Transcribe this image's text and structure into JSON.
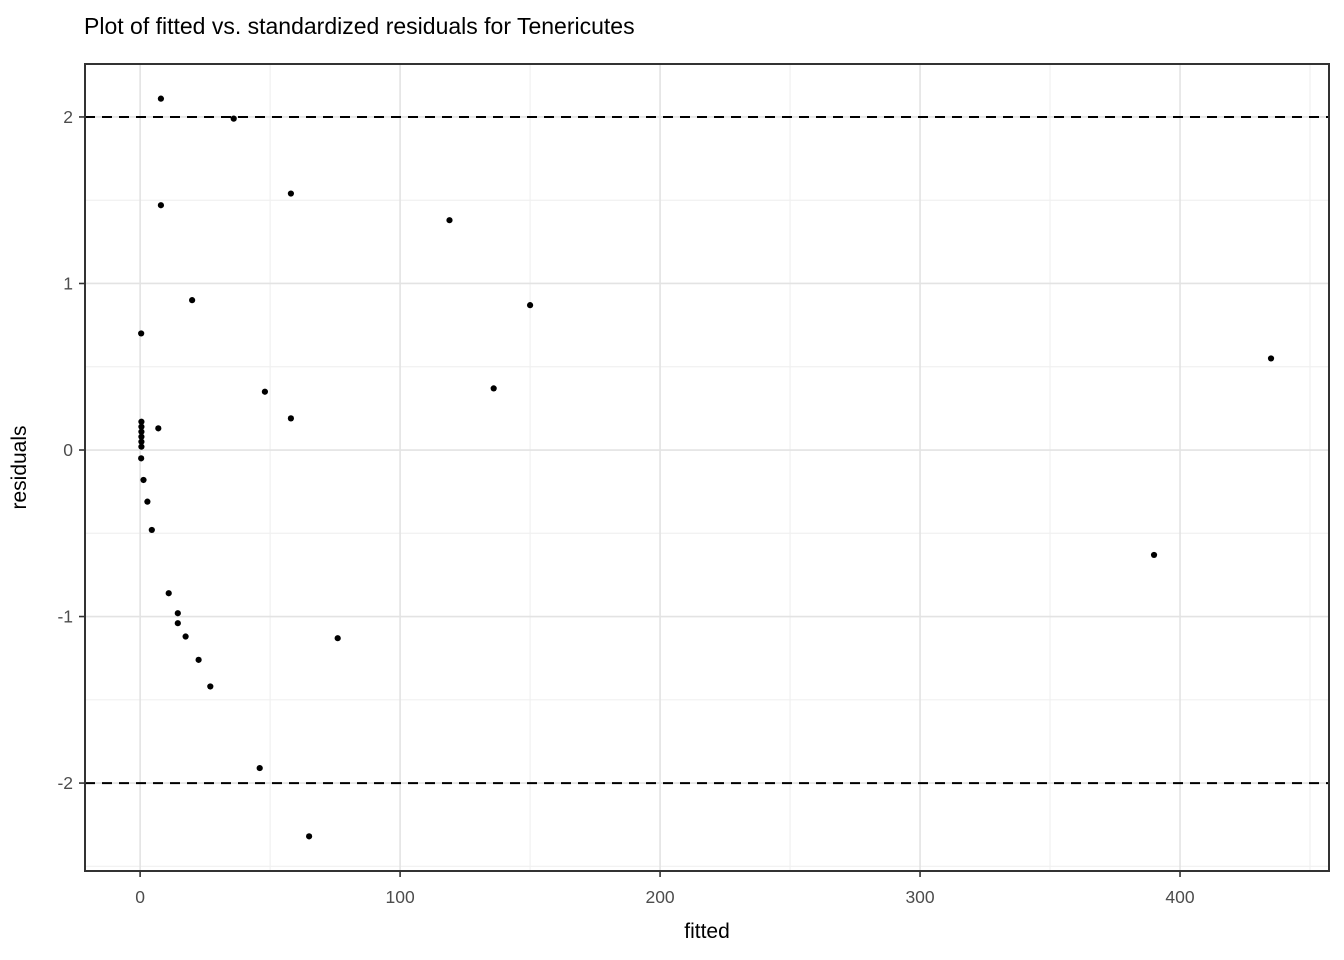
{
  "title": "Plot of fitted vs. standardized residuals for Tenericutes",
  "colors": {
    "background": "#ffffff",
    "panel_background": "#ffffff",
    "panel_border": "#333333",
    "grid_major": "#e3e3e3",
    "grid_minor": "#f0f0f0",
    "point": "#000000",
    "threshold_line": "#000000",
    "tick_mark": "#333333",
    "tick_label": "#4d4d4d",
    "title_text": "#000000"
  },
  "chart_data": {
    "type": "scatter",
    "title": "Plot of fitted vs. standardized residuals for Tenericutes",
    "xlabel": "fitted",
    "ylabel": "residuals",
    "xlim": [
      -21.2,
      457.3
    ],
    "ylim": [
      -2.528,
      2.318
    ],
    "x_ticks": [
      0,
      100,
      200,
      300,
      400
    ],
    "x_minor_ticks": [
      50,
      150,
      250,
      350,
      450
    ],
    "y_ticks": [
      -2,
      -1,
      0,
      1,
      2
    ],
    "y_minor_ticks": [
      -2.5,
      -1.5,
      -0.5,
      0.5,
      1.5
    ],
    "grid": "major_and_minor",
    "legend_position": "none",
    "reference_lines": [
      {
        "y": 2,
        "style": "dashed"
      },
      {
        "y": -2,
        "style": "dashed"
      }
    ],
    "series": [
      {
        "name": "standardized residuals",
        "points": [
          [
            8,
            2.11
          ],
          [
            36,
            1.99
          ],
          [
            58,
            1.54
          ],
          [
            8,
            1.47
          ],
          [
            119,
            1.38
          ],
          [
            20,
            0.9
          ],
          [
            150,
            0.87
          ],
          [
            0.4,
            0.7
          ],
          [
            435,
            0.55
          ],
          [
            136,
            0.37
          ],
          [
            48,
            0.35
          ],
          [
            58,
            0.19
          ],
          [
            0.5,
            0.17
          ],
          [
            0.5,
            0.14
          ],
          [
            0.5,
            0.11
          ],
          [
            0.5,
            0.08
          ],
          [
            0.5,
            0.05
          ],
          [
            0.5,
            0.02
          ],
          [
            7,
            0.13
          ],
          [
            0.4,
            -0.05
          ],
          [
            1.3,
            -0.18
          ],
          [
            2.8,
            -0.31
          ],
          [
            4.5,
            -0.48
          ],
          [
            390,
            -0.63
          ],
          [
            11,
            -0.86
          ],
          [
            14.5,
            -0.98
          ],
          [
            14.5,
            -1.04
          ],
          [
            17.5,
            -1.12
          ],
          [
            76,
            -1.13
          ],
          [
            22.5,
            -1.26
          ],
          [
            27,
            -1.42
          ],
          [
            46,
            -1.91
          ],
          [
            65,
            -2.32
          ]
        ]
      }
    ]
  }
}
